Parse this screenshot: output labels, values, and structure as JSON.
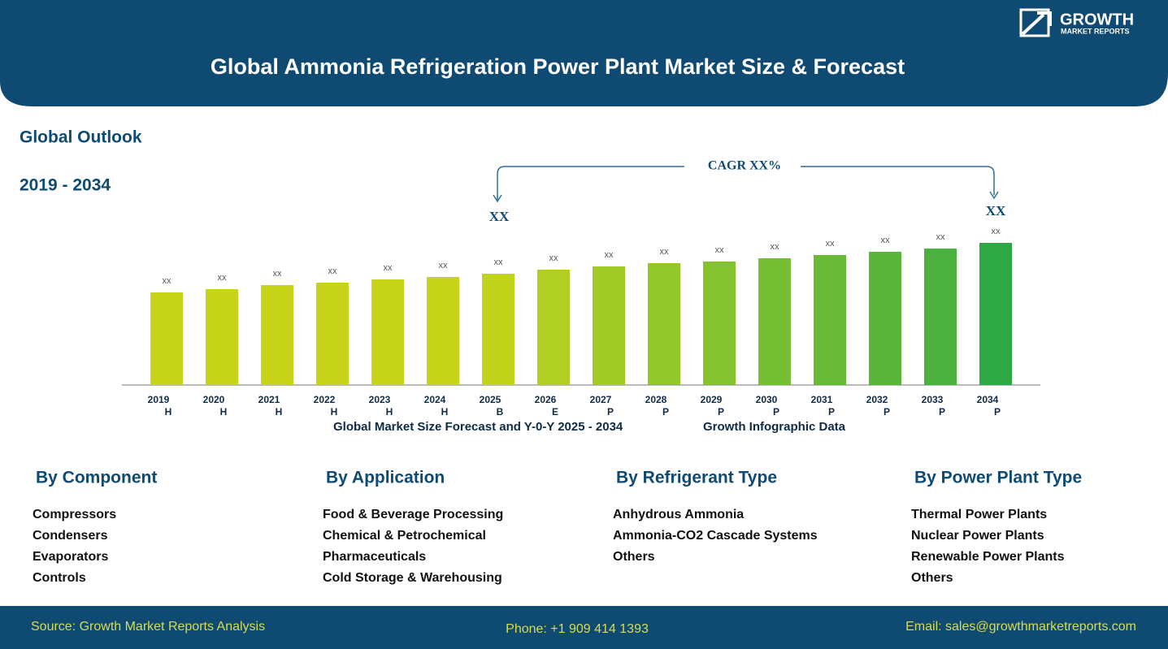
{
  "header": {
    "title": "Global Ammonia Refrigeration Power Plant Market Size & Forecast",
    "logo": [
      "GROWTH",
      "MARKET REPORTS"
    ]
  },
  "outlook": {
    "label": "Global Outlook",
    "period": "2019 - 2034"
  },
  "chart_data": {
    "type": "bar",
    "categories": [
      "2019",
      "2020",
      "2021",
      "2022",
      "2023",
      "2024",
      "2025",
      "2026",
      "2027",
      "2028",
      "2029",
      "2030",
      "2031",
      "2032",
      "2033",
      "2034"
    ],
    "phases": [
      "H",
      "H",
      "H",
      "H",
      "H",
      "H",
      "B",
      "E",
      "P",
      "P",
      "P",
      "P",
      "P",
      "P",
      "P",
      "P"
    ],
    "values": [
      114,
      118,
      123,
      126,
      130,
      133,
      137,
      142,
      146,
      150,
      152,
      156,
      160,
      164,
      168,
      175
    ],
    "value_labels": [
      "xx",
      "xx",
      "xx",
      "xx",
      "xx",
      "xx",
      "xx",
      "xx",
      "xx",
      "xx",
      "xx",
      "xx",
      "xx",
      "xx",
      "xx",
      "xx"
    ],
    "colors": [
      "#c6d41a",
      "#c6d41a",
      "#c6d41a",
      "#c6d41a",
      "#c6d41a",
      "#c6d41a",
      "#c2d31b",
      "#b1cf22",
      "#a2cb26",
      "#93c62b",
      "#84c22f",
      "#76be33",
      "#67b937",
      "#59b53a",
      "#4ab03e",
      "#2ea845"
    ],
    "annotations": {
      "cagr": "CAGR XX%",
      "start": "XX",
      "end": "XX"
    },
    "caption": [
      "Global Market Size Forecast and Y-0-Y  2025 - 2034",
      "Growth Infographic Data"
    ]
  },
  "segments": [
    {
      "title": "By Component",
      "items": [
        "Compressors",
        "Condensers",
        "Evaporators",
        "Controls"
      ]
    },
    {
      "title": "By Application",
      "items": [
        "Food & Beverage Processing",
        "Chemical & Petrochemical",
        "Pharmaceuticals",
        "Cold Storage & Warehousing"
      ]
    },
    {
      "title": "By Refrigerant Type",
      "items": [
        "Anhydrous Ammonia",
        "Ammonia-CO2 Cascade Systems",
        "Others"
      ]
    },
    {
      "title": "By Power Plant Type",
      "items": [
        "Thermal Power Plants",
        "Nuclear Power Plants",
        "Renewable Power Plants",
        "Others"
      ]
    }
  ],
  "footer": {
    "source": "Source: Growth Market Reports Analysis",
    "phone": "Phone: +1 909 414 1393",
    "email": "Email: sales@growthmarketreports.com"
  }
}
